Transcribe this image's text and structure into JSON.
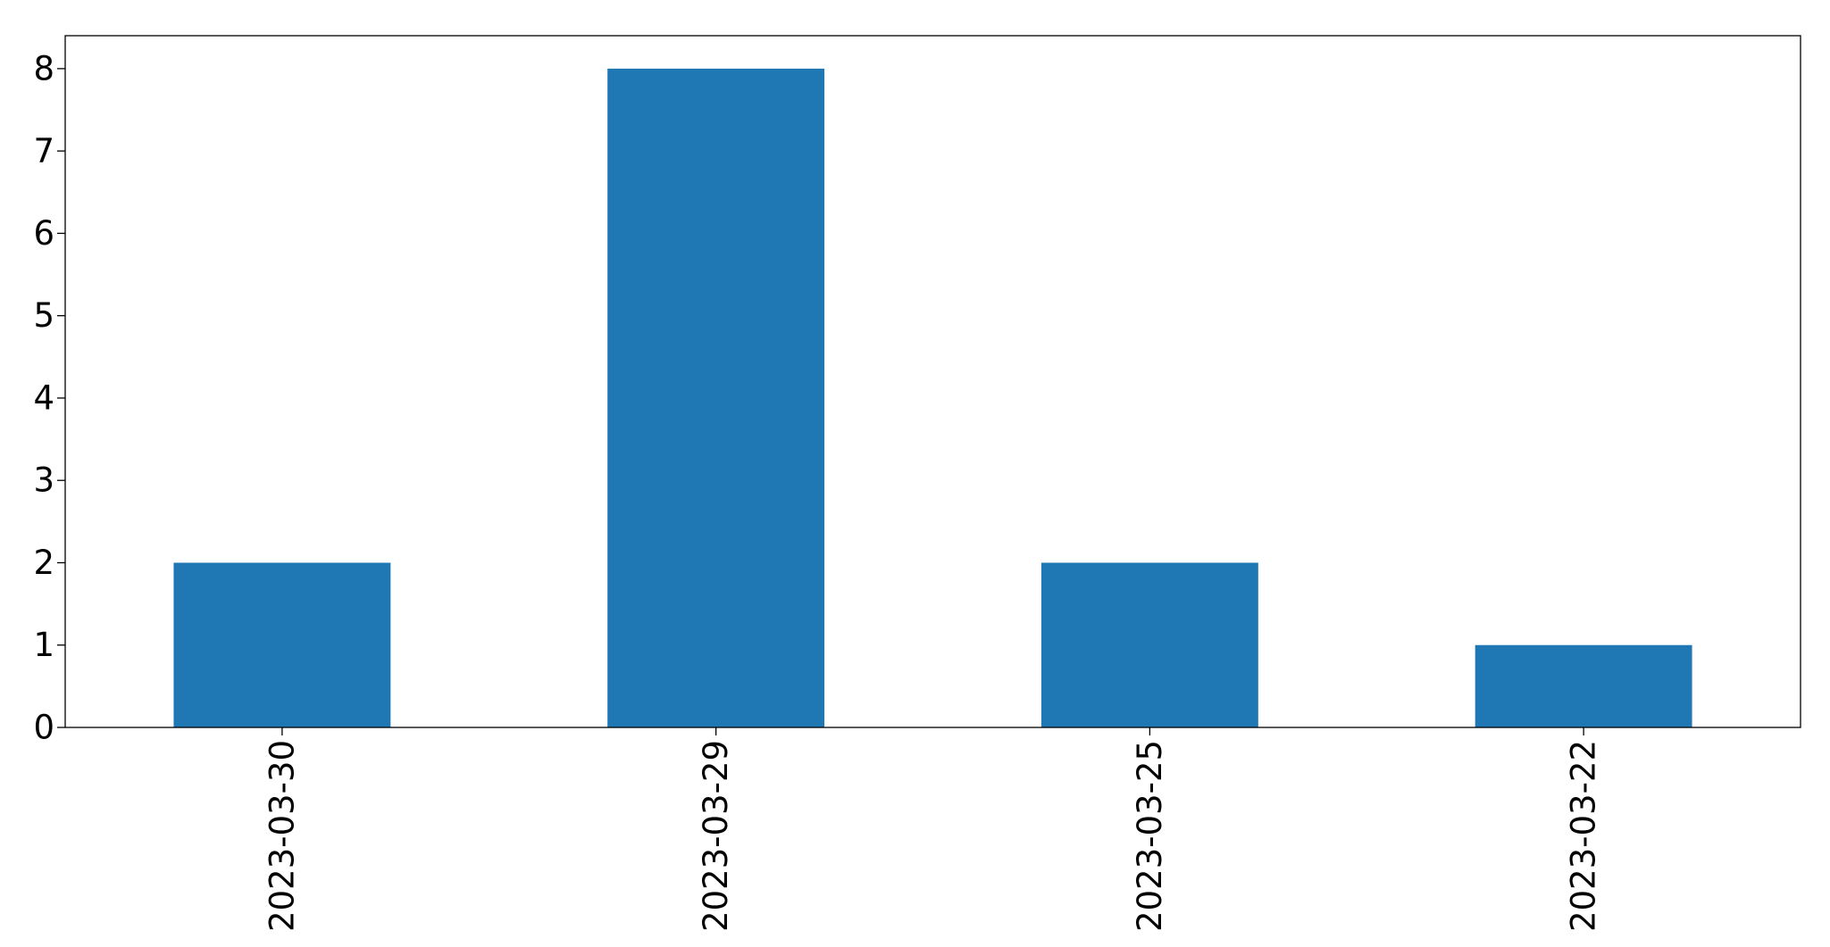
{
  "chart_data": {
    "type": "bar",
    "title": "",
    "xlabel": "",
    "ylabel": "",
    "categories": [
      "2023-03-30",
      "2023-03-29",
      "2023-03-25",
      "2023-03-22"
    ],
    "values": [
      2,
      8,
      2,
      1
    ],
    "ylim": [
      0,
      8.4
    ],
    "yticks": [
      0,
      1,
      2,
      3,
      4,
      5,
      6,
      7,
      8
    ],
    "bar_color": "#1f77b4",
    "grid": false,
    "legend": "none"
  }
}
